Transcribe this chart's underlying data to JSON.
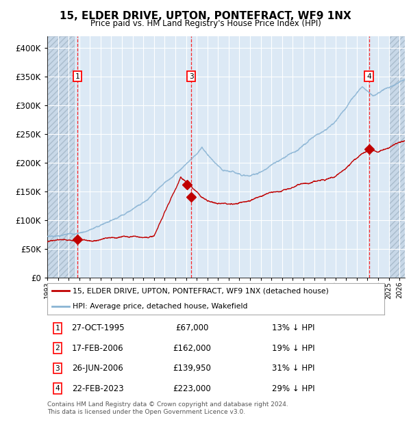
{
  "title": "15, ELDER DRIVE, UPTON, PONTEFRACT, WF9 1NX",
  "subtitle": "Price paid vs. HM Land Registry's House Price Index (HPI)",
  "legend_line1": "15, ELDER DRIVE, UPTON, PONTEFRACT, WF9 1NX (detached house)",
  "legend_line2": "HPI: Average price, detached house, Wakefield",
  "footer_line1": "Contains HM Land Registry data © Crown copyright and database right 2024.",
  "footer_line2": "This data is licensed under the Open Government Licence v3.0.",
  "hpi_color": "#8ab4d4",
  "price_color": "#c00000",
  "background_color": "#dce9f5",
  "hatch_color": "#c0d0e0",
  "transactions": [
    {
      "num": 1,
      "date_x": 1995.83,
      "price": 67000,
      "label": "27-OCT-1995",
      "price_str": "£67,000",
      "pct": "13% ↓ HPI"
    },
    {
      "num": 2,
      "date_x": 2006.12,
      "price": 162000,
      "label": "17-FEB-2006",
      "price_str": "£162,000",
      "pct": "19% ↓ HPI"
    },
    {
      "num": 3,
      "date_x": 2006.49,
      "price": 139950,
      "label": "26-JUN-2006",
      "price_str": "£139,950",
      "pct": "31% ↓ HPI"
    },
    {
      "num": 4,
      "date_x": 2023.14,
      "price": 223000,
      "label": "22-FEB-2023",
      "price_str": "£223,000",
      "pct": "29% ↓ HPI"
    }
  ],
  "vline_nums": [
    1,
    3,
    4
  ],
  "ylim": [
    0,
    420000
  ],
  "yticks": [
    0,
    50000,
    100000,
    150000,
    200000,
    250000,
    300000,
    350000,
    400000
  ],
  "xlim_start": 1993.0,
  "xlim_end": 2026.5,
  "hatch_left_end": 1995.5,
  "hatch_right_start": 2025.0
}
